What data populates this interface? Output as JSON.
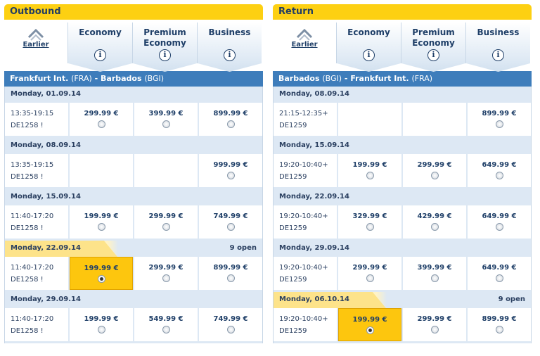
{
  "outbound": {
    "title": "Outbound",
    "earlier": "Earlier",
    "classes": [
      "Economy",
      "Premium Economy",
      "Business"
    ],
    "info": "i",
    "route": {
      "from": "Frankfurt Int.",
      "from_code": "(FRA)",
      "sep": " - ",
      "to": "Barbados",
      "to_code": "(BGI)"
    },
    "days": [
      {
        "date": "Monday, 01.09.14",
        "open": "",
        "time": "13:35-19:15",
        "flight": "DE1258 !",
        "fares": [
          "299.99 €",
          "399.99 €",
          "899.99 €"
        ]
      },
      {
        "date": "Monday, 08.09.14",
        "open": "",
        "time": "13:35-19:15",
        "flight": "DE1258 !",
        "fares": [
          "",
          "",
          "999.99 €"
        ]
      },
      {
        "date": "Monday, 15.09.14",
        "open": "",
        "time": "11:40-17:20",
        "flight": "DE1258 !",
        "fares": [
          "199.99 €",
          "299.99 €",
          "749.99 €"
        ]
      },
      {
        "date": "Monday, 22.09.14",
        "open": "9 open",
        "time": "11:40-17:20",
        "flight": "DE1258 !",
        "fares": [
          "199.99 €",
          "299.99 €",
          "899.99 €"
        ],
        "selected": 0
      },
      {
        "date": "Monday, 29.09.14",
        "open": "",
        "time": "11:40-17:20",
        "flight": "DE1258 !",
        "fares": [
          "199.99 €",
          "549.99 €",
          "749.99 €"
        ]
      }
    ]
  },
  "return": {
    "title": "Return",
    "earlier": "Earlier",
    "classes": [
      "Economy",
      "Premium Economy",
      "Business"
    ],
    "info": "i",
    "route": {
      "from": "Barbados",
      "from_code": "(BGI)",
      "sep": " - ",
      "to": "Frankfurt Int.",
      "to_code": "(FRA)"
    },
    "days": [
      {
        "date": "Monday, 08.09.14",
        "open": "",
        "time": "21:15-12:35+",
        "flight": "DE1259",
        "fares": [
          "",
          "",
          "899.99 €"
        ]
      },
      {
        "date": "Monday, 15.09.14",
        "open": "",
        "time": "19:20-10:40+",
        "flight": "DE1259",
        "fares": [
          "199.99 €",
          "299.99 €",
          "649.99 €"
        ]
      },
      {
        "date": "Monday, 22.09.14",
        "open": "",
        "time": "19:20-10:40+",
        "flight": "DE1259",
        "fares": [
          "329.99 €",
          "429.99 €",
          "649.99 €"
        ]
      },
      {
        "date": "Monday, 29.09.14",
        "open": "",
        "time": "19:20-10:40+",
        "flight": "DE1259",
        "fares": [
          "299.99 €",
          "399.99 €",
          "649.99 €"
        ]
      },
      {
        "date": "Monday, 06.10.14",
        "open": "9 open",
        "time": "19:20-10:40+",
        "flight": "DE1259",
        "fares": [
          "199.99 €",
          "299.99 €",
          "899.99 €"
        ],
        "selected": 0
      }
    ]
  },
  "colors": {
    "accent": "#fdd012",
    "route_bar": "#3e7dbb",
    "text": "#1f3f68",
    "selected_fare": "#fdc60e"
  }
}
